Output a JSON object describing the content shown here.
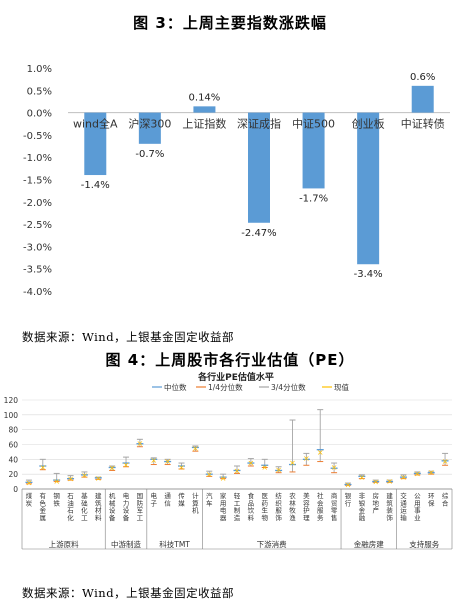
{
  "figure1": {
    "title": "图 3：上周主要指数涨跌幅",
    "source": "数据来源：Wind，上银基金固定收益部"
  },
  "figure2": {
    "title": "图 4：上周股市各行业估值（PE）",
    "source": "数据来源：Wind，上银基金固定收益部"
  },
  "chart_data": [
    {
      "type": "bar",
      "title": "",
      "categories": [
        "wind全A",
        "沪深300",
        "上证指数",
        "深证成指",
        "中证500",
        "创业板",
        "中证转债"
      ],
      "values": [
        -1.4,
        -0.7,
        0.14,
        -2.47,
        -1.7,
        -3.4,
        0.6
      ],
      "data_labels": [
        "-1.4%",
        "-0.7%",
        "0.14%",
        "-2.47%",
        "-1.7%",
        "-3.4%",
        "0.6%"
      ],
      "ylim": [
        -4.0,
        1.0
      ],
      "yticks": [
        "1.0%",
        "0.5%",
        "0.0%",
        "-0.5%",
        "-1.0%",
        "-1.5%",
        "-2.0%",
        "-2.5%",
        "-3.0%",
        "-3.5%",
        "-4.0%"
      ],
      "xlabel": "",
      "ylabel": "",
      "grid": false,
      "color": "#5b9bd5"
    },
    {
      "type": "line",
      "title": "各行业PE估值水平",
      "ylim": [
        0,
        120
      ],
      "yticks": [
        "0",
        "20",
        "40",
        "60",
        "80",
        "100",
        "120"
      ],
      "legend_position": "top",
      "series_names": [
        "中位数",
        "1/4分位数",
        "3/4分位数",
        "现值"
      ],
      "series_colors": [
        "#5b9bd5",
        "#ed7d31",
        "#a5a5a5",
        "#ffc000"
      ],
      "categories": [
        "煤炭",
        "有色金属",
        "钢铁",
        "石油石化",
        "基础化工",
        "建筑材料",
        "机械设备",
        "电力设备",
        "国防军工",
        "电子",
        "通信",
        "传媒",
        "计算机",
        "汽车",
        "家用电器",
        "轻工制造",
        "食品饮料",
        "医药生物",
        "纺织服饰",
        "农林牧渔",
        "美容护理",
        "社会服务",
        "商贸零售",
        "银行",
        "非银金融",
        "房地产",
        "建筑装饰",
        "交通运输",
        "公用事业",
        "环保",
        "综合"
      ],
      "median": [
        9,
        31,
        12,
        14,
        19,
        15,
        29,
        35,
        61,
        40,
        37,
        31,
        56,
        20,
        16,
        25,
        35,
        32,
        25,
        33,
        40,
        53,
        28,
        6,
        17,
        10,
        10,
        16,
        21,
        22,
        38
      ],
      "q1": [
        7,
        26,
        10,
        12,
        16,
        13,
        25,
        30,
        57,
        33,
        33,
        27,
        51,
        17,
        14,
        21,
        31,
        29,
        22,
        23,
        32,
        37,
        22,
        5,
        14,
        9,
        9,
        14,
        19,
        20,
        32
      ],
      "q3": [
        12,
        40,
        21,
        18,
        23,
        16,
        31,
        43,
        67,
        42,
        40,
        35,
        58,
        24,
        20,
        31,
        41,
        40,
        30,
        93,
        48,
        107,
        35,
        8,
        19,
        12,
        12,
        19,
        23,
        24,
        48
      ],
      "current": [
        9,
        30,
        11,
        14,
        19,
        15,
        29,
        33,
        62,
        39,
        38,
        30,
        55,
        20,
        15,
        25,
        36,
        30,
        26,
        36,
        42,
        50,
        30,
        6,
        16,
        10,
        11,
        16,
        21,
        23,
        38
      ],
      "groups": [
        {
          "name": "上游原料",
          "count": 6
        },
        {
          "name": "中游制造",
          "count": 3
        },
        {
          "name": "科技TMT",
          "count": 4
        },
        {
          "name": "下游消费",
          "count": 10
        },
        {
          "name": "金融房建",
          "count": 4
        },
        {
          "name": "支持服务",
          "count": 4
        }
      ],
      "grid": true
    }
  ]
}
